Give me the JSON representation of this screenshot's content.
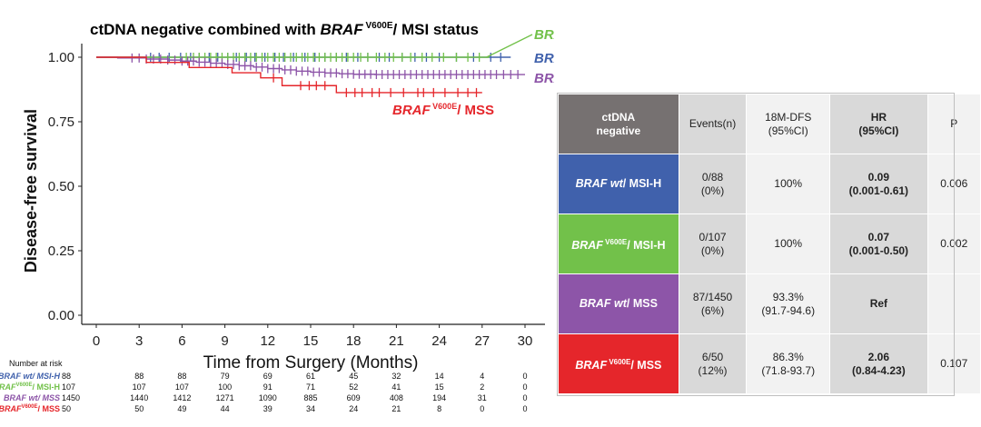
{
  "chart_data": {
    "type": "line",
    "title_parts": [
      "ctDNA negative combined with ",
      "BRAF",
      " V600E",
      "/ MSI status"
    ],
    "ylabel": "Disease-free survival",
    "xlabel": "Time from Surgery (Months)",
    "xlim": [
      0,
      30
    ],
    "ylim": [
      0,
      1
    ],
    "x_ticks": [
      "0",
      "3",
      "6",
      "9",
      "12",
      "15",
      "18",
      "21",
      "24",
      "27",
      "30"
    ],
    "y_ticks": [
      "0.00",
      "0.25",
      "0.50",
      "0.75",
      "1.00"
    ],
    "series": [
      {
        "name": "BRAF wt/ MSI-H",
        "label_parts": [
          "BRAF",
          " wt/ MSI-H",
          ""
        ],
        "color": "#4061ac",
        "steps": [
          [
            0,
            1.0
          ],
          [
            29,
            1.0
          ]
        ],
        "censor": [
          3.8,
          4.4,
          5.1,
          5.9,
          6.6,
          7.2,
          7.9,
          8.5,
          9.2,
          9.8,
          10.5,
          11.1,
          11.8,
          12.5,
          13.1,
          13.8,
          14.6,
          15.3,
          16.0,
          16.8,
          17.5,
          18.3,
          19.0,
          19.8,
          20.5,
          21.4,
          22.3,
          23.1,
          24.0,
          25.2,
          26.4,
          27.6,
          28.3
        ]
      },
      {
        "name": "BRAF V600E/ MSI-H",
        "label_parts": [
          "BRAF",
          " V600E",
          "/ MSI-H"
        ],
        "color": "#72c14a",
        "steps": [
          [
            0,
            1.0
          ],
          [
            27.5,
            1.0
          ]
        ],
        "censor": [
          6.3,
          6.8,
          7.2,
          7.6,
          8.0,
          8.4,
          8.8,
          9.2,
          9.6,
          10.0,
          10.4,
          10.8,
          11.2,
          11.6,
          12.0,
          12.4,
          12.8,
          13.2,
          13.6,
          14.0,
          14.4,
          14.8,
          15.2,
          15.6,
          16.0,
          16.4,
          16.8,
          17.2,
          17.6,
          18.0,
          18.5,
          19.0,
          19.6,
          20.2,
          20.8,
          21.4,
          22.0,
          22.8,
          23.5,
          24.3,
          25.2,
          26.0,
          26.8
        ]
      },
      {
        "name": "BRAF wt/ MSS",
        "label_parts": [
          "BRAF",
          " wt/ MSS",
          ""
        ],
        "color": "#8d55a8",
        "steps": [
          [
            0,
            1.0
          ],
          [
            1.5,
            0.997
          ],
          [
            3.5,
            0.993
          ],
          [
            5.0,
            0.989
          ],
          [
            6.0,
            0.985
          ],
          [
            7.0,
            0.981
          ],
          [
            8.0,
            0.977
          ],
          [
            9.0,
            0.972
          ],
          [
            10.0,
            0.967
          ],
          [
            11.0,
            0.962
          ],
          [
            12.0,
            0.956
          ],
          [
            13.0,
            0.951
          ],
          [
            14.0,
            0.946
          ],
          [
            15.0,
            0.942
          ],
          [
            16.0,
            0.939
          ],
          [
            17.0,
            0.936
          ],
          [
            18.0,
            0.934
          ],
          [
            19.5,
            0.933
          ],
          [
            30,
            0.933
          ]
        ],
        "censor": [
          2.5,
          3.0,
          3.5,
          4.0,
          4.5,
          5.0,
          5.5,
          6.0,
          6.4,
          6.8,
          7.2,
          7.6,
          8.0,
          8.4,
          8.8,
          9.2,
          9.6,
          10.0,
          10.4,
          10.8,
          11.2,
          11.6,
          12.0,
          12.4,
          12.8,
          13.2,
          13.6,
          14.0,
          14.4,
          14.8,
          15.2,
          15.6,
          16.0,
          16.4,
          16.8,
          17.2,
          17.6,
          18.0,
          18.4,
          18.8,
          19.2,
          19.6,
          20.0,
          20.4,
          20.8,
          21.2,
          21.6,
          22.0,
          22.4,
          22.8,
          23.2,
          23.6,
          24.0,
          24.4,
          24.8,
          25.2,
          25.6,
          26.0,
          26.4,
          26.8,
          27.2,
          27.6,
          28.0,
          28.5,
          29.0,
          29.5
        ]
      },
      {
        "name": "BRAF V600E/ MSS",
        "label_parts": [
          "BRAF",
          " V600E",
          "/ MSS"
        ],
        "color": "#e5262b",
        "steps": [
          [
            0,
            1.0
          ],
          [
            3.5,
            0.98
          ],
          [
            6.5,
            0.96
          ],
          [
            9.5,
            0.94
          ],
          [
            11.5,
            0.92
          ],
          [
            12.0,
            0.92
          ],
          [
            13.0,
            0.89
          ],
          [
            16.8,
            0.863
          ],
          [
            27,
            0.863
          ]
        ],
        "censor": [
          12.4,
          14.3,
          14.9,
          15.4,
          16.0,
          17.5,
          18.1,
          18.6,
          19.3,
          19.8,
          20.6,
          21.5,
          22.5,
          22.9,
          23.6,
          24.4,
          25.3,
          26.0,
          26.6
        ]
      }
    ],
    "risk_table": {
      "header": "Number at risk",
      "times": [
        0,
        3,
        6,
        9,
        12,
        15,
        18,
        21,
        24,
        27,
        30
      ],
      "rows": [
        {
          "label_parts": [
            "BRAF",
            " wt/ MSI-H",
            ""
          ],
          "color": "#4061ac",
          "values": [
            "88",
            "88",
            "88",
            "79",
            "69",
            "61",
            "45",
            "32",
            "14",
            "4",
            "0"
          ]
        },
        {
          "label_parts": [
            "BRAF",
            "V600E",
            "/ MSI-H"
          ],
          "color": "#72c14a",
          "values": [
            "107",
            "107",
            "107",
            "100",
            "91",
            "71",
            "52",
            "41",
            "15",
            "2",
            "0"
          ]
        },
        {
          "label_parts": [
            "BRAF",
            " wt/ MSS",
            ""
          ],
          "color": "#8d55a8",
          "values": [
            "1450",
            "1440",
            "1412",
            "1271",
            "1090",
            "885",
            "609",
            "408",
            "194",
            "31",
            "0"
          ]
        },
        {
          "label_parts": [
            "BRAF",
            "V600E",
            "/ MSS"
          ],
          "color": "#e5262b",
          "values": [
            "50",
            "50",
            "49",
            "44",
            "39",
            "34",
            "24",
            "21",
            "8",
            "0",
            "0"
          ]
        }
      ]
    }
  },
  "table": {
    "headers": [
      "ctDNA\nnegative",
      "Events(n)",
      "18M-DFS\n(95%CI)",
      "HR\n(95%CI)",
      "P"
    ],
    "header_fill": "#767171",
    "rows": [
      {
        "label_parts": [
          "BRAF",
          " wt",
          "/ MSI-H"
        ],
        "fill": "#4061ac",
        "events": "0/88\n(0%)",
        "dfs": "100%",
        "hr": "0.09\n(0.001-0.61)",
        "p": "0.006"
      },
      {
        "label_parts": [
          "BRAF",
          " V600E",
          "/ MSI-H"
        ],
        "fill": "#72c14a",
        "events": "0/107\n(0%)",
        "dfs": "100%",
        "hr": "0.07\n(0.001-0.50)",
        "p": "0.002"
      },
      {
        "label_parts": [
          "BRAF",
          " wt",
          "/ MSS"
        ],
        "fill": "#8d55a8",
        "events": "87/1450\n(6%)",
        "dfs": "93.3%\n(91.7-94.6)",
        "hr": "Ref",
        "p": ""
      },
      {
        "label_parts": [
          "BRAF",
          " V600E",
          "/ MSS"
        ],
        "fill": "#e5262b",
        "events": "6/50\n(12%)",
        "dfs": "86.3%\n(71.8-93.7)",
        "hr": "2.06\n(0.84-4.23)",
        "p": "0.107"
      }
    ]
  }
}
